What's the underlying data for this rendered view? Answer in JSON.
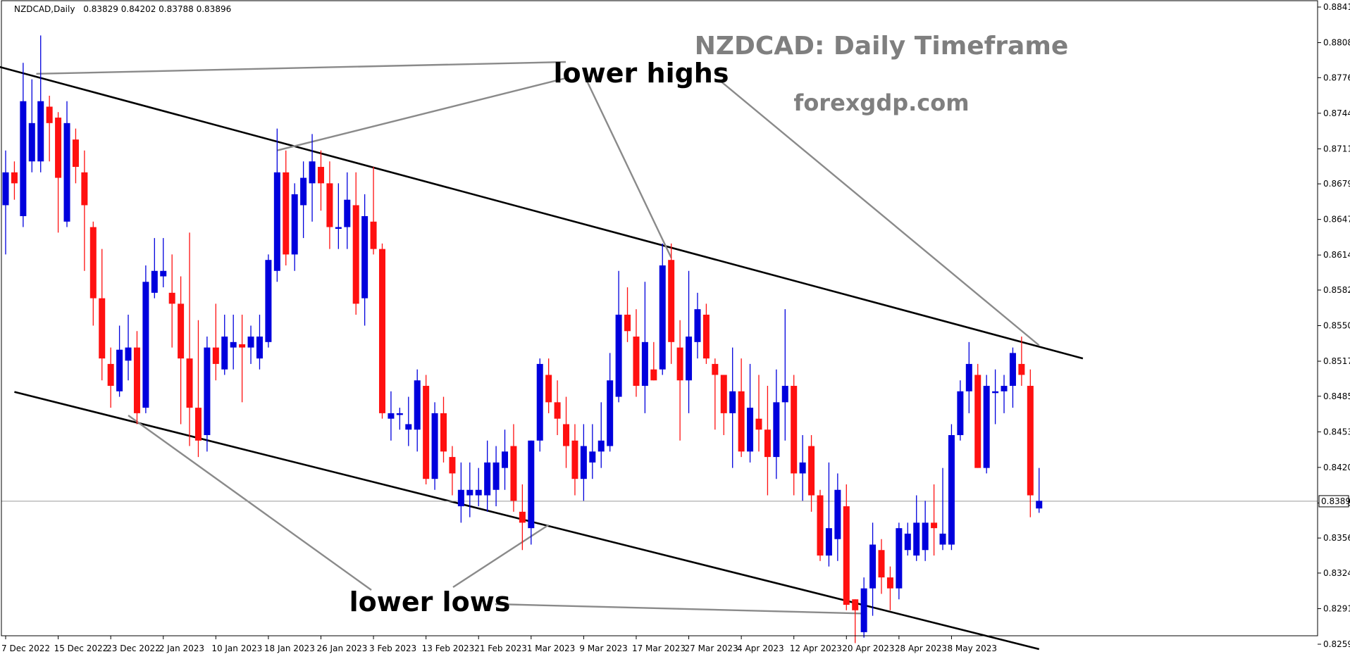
{
  "chart_data": {
    "type": "candlestick",
    "symbol_header": "NZDCAD,Daily",
    "header_ohlc": "0.83829 0.84202 0.83788 0.83896",
    "title": "NZDCAD: Daily Timeframe",
    "website": "forexgdp.com",
    "current_price": "0.83896",
    "ylim": [
      0.8243,
      0.8853
    ],
    "price_ticks": [
      "0.88410",
      "0.88085",
      "0.87765",
      "0.87440",
      "0.87115",
      "0.86795",
      "0.86470",
      "0.86145",
      "0.85825",
      "0.85500",
      "0.85175",
      "0.84855",
      "0.84530",
      "0.84205",
      "0.83880",
      "0.83560",
      "0.83240",
      "0.82915",
      "0.82590"
    ],
    "date_ticks": [
      {
        "i": 0,
        "label": "7 Dec 2022"
      },
      {
        "i": 6,
        "label": "15 Dec 2022"
      },
      {
        "i": 12,
        "label": "23 Dec 2022"
      },
      {
        "i": 18,
        "label": "2 Jan 2023"
      },
      {
        "i": 24,
        "label": "10 Jan 2023"
      },
      {
        "i": 30,
        "label": "18 Jan 2023"
      },
      {
        "i": 36,
        "label": "26 Jan 2023"
      },
      {
        "i": 42,
        "label": "3 Feb 2023"
      },
      {
        "i": 48,
        "label": "13 Feb 2023"
      },
      {
        "i": 54,
        "label": "21 Feb 2023"
      },
      {
        "i": 60,
        "label": "1 Mar 2023"
      },
      {
        "i": 66,
        "label": "9 Mar 2023"
      },
      {
        "i": 72,
        "label": "17 Mar 2023"
      },
      {
        "i": 78,
        "label": "27 Mar 2023"
      },
      {
        "i": 84,
        "label": "4 Apr 2023"
      },
      {
        "i": 90,
        "label": "12 Apr 2023"
      },
      {
        "i": 96,
        "label": "20 Apr 2023"
      },
      {
        "i": 102,
        "label": "28 Apr 2023"
      },
      {
        "i": 108,
        "label": "8 May 2023"
      }
    ],
    "candles": [
      [
        0.866,
        0.871,
        0.8615,
        0.869
      ],
      [
        0.869,
        0.87,
        0.8665,
        0.868
      ],
      [
        0.865,
        0.879,
        0.864,
        0.8755
      ],
      [
        0.87,
        0.8775,
        0.869,
        0.8735
      ],
      [
        0.87,
        0.8815,
        0.869,
        0.8755
      ],
      [
        0.875,
        0.876,
        0.87,
        0.8735
      ],
      [
        0.874,
        0.8745,
        0.8635,
        0.8685
      ],
      [
        0.8645,
        0.8755,
        0.864,
        0.8735
      ],
      [
        0.872,
        0.873,
        0.868,
        0.8695
      ],
      [
        0.869,
        0.871,
        0.86,
        0.866
      ],
      [
        0.864,
        0.8645,
        0.855,
        0.8575
      ],
      [
        0.8575,
        0.862,
        0.85,
        0.852
      ],
      [
        0.8515,
        0.853,
        0.8475,
        0.8495
      ],
      [
        0.849,
        0.855,
        0.8485,
        0.8528
      ],
      [
        0.8518,
        0.856,
        0.85,
        0.853
      ],
      [
        0.853,
        0.8545,
        0.846,
        0.847
      ],
      [
        0.8475,
        0.8605,
        0.847,
        0.859
      ],
      [
        0.858,
        0.863,
        0.8575,
        0.86
      ],
      [
        0.8595,
        0.863,
        0.8585,
        0.86
      ],
      [
        0.858,
        0.8615,
        0.853,
        0.857
      ],
      [
        0.857,
        0.8595,
        0.846,
        0.852
      ],
      [
        0.852,
        0.8635,
        0.844,
        0.8475
      ],
      [
        0.8475,
        0.8555,
        0.843,
        0.8445
      ],
      [
        0.845,
        0.854,
        0.8435,
        0.853
      ],
      [
        0.853,
        0.857,
        0.85,
        0.8515
      ],
      [
        0.851,
        0.856,
        0.8505,
        0.854
      ],
      [
        0.853,
        0.856,
        0.851,
        0.8535
      ],
      [
        0.8533,
        0.856,
        0.848,
        0.853
      ],
      [
        0.853,
        0.855,
        0.8515,
        0.854
      ],
      [
        0.852,
        0.856,
        0.851,
        0.854
      ],
      [
        0.8535,
        0.8615,
        0.853,
        0.861
      ],
      [
        0.86,
        0.873,
        0.859,
        0.869
      ],
      [
        0.869,
        0.871,
        0.8605,
        0.8615
      ],
      [
        0.8615,
        0.868,
        0.86,
        0.867
      ],
      [
        0.866,
        0.87,
        0.863,
        0.8685
      ],
      [
        0.868,
        0.8725,
        0.8645,
        0.87
      ],
      [
        0.8695,
        0.871,
        0.8655,
        0.868
      ],
      [
        0.868,
        0.87,
        0.862,
        0.864
      ],
      [
        0.864,
        0.868,
        0.862,
        0.864
      ],
      [
        0.864,
        0.869,
        0.862,
        0.8665
      ],
      [
        0.866,
        0.869,
        0.856,
        0.857
      ],
      [
        0.8575,
        0.867,
        0.855,
        0.865
      ],
      [
        0.8645,
        0.8695,
        0.8615,
        0.862
      ],
      [
        0.862,
        0.8625,
        0.8465,
        0.847
      ],
      [
        0.8465,
        0.849,
        0.8445,
        0.847
      ],
      [
        0.847,
        0.8475,
        0.8455,
        0.847
      ],
      [
        0.8455,
        0.8485,
        0.844,
        0.846
      ],
      [
        0.8455,
        0.851,
        0.8435,
        0.85
      ],
      [
        0.8495,
        0.8505,
        0.8405,
        0.841
      ],
      [
        0.841,
        0.848,
        0.84,
        0.847
      ],
      [
        0.847,
        0.8485,
        0.8425,
        0.8435
      ],
      [
        0.843,
        0.844,
        0.8395,
        0.8415
      ],
      [
        0.8385,
        0.8425,
        0.837,
        0.84
      ],
      [
        0.8395,
        0.8425,
        0.8375,
        0.84
      ],
      [
        0.8395,
        0.842,
        0.8385,
        0.84
      ],
      [
        0.8395,
        0.8445,
        0.838,
        0.8425
      ],
      [
        0.84,
        0.844,
        0.8385,
        0.8425
      ],
      [
        0.842,
        0.8455,
        0.84,
        0.8435
      ],
      [
        0.844,
        0.846,
        0.838,
        0.839
      ],
      [
        0.838,
        0.8405,
        0.8345,
        0.837
      ],
      [
        0.8365,
        0.8445,
        0.835,
        0.8445
      ],
      [
        0.8445,
        0.852,
        0.8435,
        0.8515
      ],
      [
        0.8505,
        0.852,
        0.847,
        0.848
      ],
      [
        0.848,
        0.85,
        0.845,
        0.8465
      ],
      [
        0.846,
        0.8485,
        0.842,
        0.844
      ],
      [
        0.8445,
        0.846,
        0.8395,
        0.841
      ],
      [
        0.841,
        0.846,
        0.839,
        0.844
      ],
      [
        0.8425,
        0.846,
        0.841,
        0.8435
      ],
      [
        0.8435,
        0.848,
        0.842,
        0.8445
      ],
      [
        0.844,
        0.8525,
        0.8435,
        0.85
      ],
      [
        0.8485,
        0.86,
        0.848,
        0.856
      ],
      [
        0.856,
        0.8585,
        0.8535,
        0.8545
      ],
      [
        0.854,
        0.8565,
        0.8485,
        0.8495
      ],
      [
        0.8495,
        0.859,
        0.847,
        0.8535
      ],
      [
        0.851,
        0.8535,
        0.85,
        0.85
      ],
      [
        0.851,
        0.8625,
        0.8505,
        0.8605
      ],
      [
        0.861,
        0.8625,
        0.8515,
        0.8535
      ],
      [
        0.853,
        0.8555,
        0.8445,
        0.85
      ],
      [
        0.85,
        0.86,
        0.847,
        0.854
      ],
      [
        0.8535,
        0.858,
        0.852,
        0.8565
      ],
      [
        0.856,
        0.857,
        0.8515,
        0.852
      ],
      [
        0.8515,
        0.852,
        0.8455,
        0.8505
      ],
      [
        0.8505,
        0.8505,
        0.845,
        0.847
      ],
      [
        0.847,
        0.853,
        0.842,
        0.849
      ],
      [
        0.849,
        0.852,
        0.843,
        0.8435
      ],
      [
        0.8435,
        0.8515,
        0.8425,
        0.8475
      ],
      [
        0.8465,
        0.8505,
        0.8435,
        0.8455
      ],
      [
        0.8455,
        0.8495,
        0.8395,
        0.843
      ],
      [
        0.843,
        0.851,
        0.841,
        0.848
      ],
      [
        0.848,
        0.8565,
        0.8445,
        0.8495
      ],
      [
        0.8495,
        0.8505,
        0.8395,
        0.8415
      ],
      [
        0.8415,
        0.845,
        0.839,
        0.8425
      ],
      [
        0.844,
        0.845,
        0.838,
        0.8395
      ],
      [
        0.8395,
        0.84,
        0.8335,
        0.834
      ],
      [
        0.834,
        0.8425,
        0.833,
        0.8365
      ],
      [
        0.8355,
        0.8415,
        0.8335,
        0.84
      ],
      [
        0.8385,
        0.8405,
        0.829,
        0.8295
      ],
      [
        0.83,
        0.83,
        0.826,
        0.829
      ],
      [
        0.827,
        0.832,
        0.8265,
        0.831
      ],
      [
        0.831,
        0.837,
        0.8285,
        0.835
      ],
      [
        0.8345,
        0.8355,
        0.8305,
        0.832
      ],
      [
        0.832,
        0.833,
        0.829,
        0.831
      ],
      [
        0.831,
        0.837,
        0.83,
        0.8365
      ],
      [
        0.8345,
        0.837,
        0.834,
        0.836
      ],
      [
        0.834,
        0.8395,
        0.8335,
        0.837
      ],
      [
        0.8345,
        0.839,
        0.8335,
        0.837
      ],
      [
        0.837,
        0.8405,
        0.834,
        0.8365
      ],
      [
        0.835,
        0.842,
        0.8345,
        0.836
      ],
      [
        0.835,
        0.846,
        0.8345,
        0.845
      ],
      [
        0.845,
        0.85,
        0.8445,
        0.849
      ],
      [
        0.849,
        0.8535,
        0.847,
        0.8515
      ],
      [
        0.8505,
        0.8515,
        0.842,
        0.842
      ],
      [
        0.842,
        0.8505,
        0.8415,
        0.8495
      ],
      [
        0.849,
        0.851,
        0.846,
        0.849
      ],
      [
        0.849,
        0.8505,
        0.847,
        0.8495
      ],
      [
        0.8495,
        0.853,
        0.8475,
        0.8525
      ],
      [
        0.8515,
        0.854,
        0.8495,
        0.8505
      ],
      [
        0.8495,
        0.851,
        0.8375,
        0.8395
      ],
      [
        0.8383,
        0.842,
        0.8379,
        0.839
      ]
    ],
    "trendlines": [
      {
        "from": [
          -1,
          0.8787
        ],
        "to": [
          123,
          0.852
        ],
        "role": "upper channel"
      },
      {
        "from": [
          1,
          0.84895
        ],
        "to": [
          118,
          0.82545
        ],
        "role": "lower channel"
      }
    ],
    "annotations": [
      {
        "text": "lower highs",
        "pointers": [
          [
            3.5,
            0.878
          ],
          [
            31,
            0.871
          ],
          [
            76,
            0.8612
          ],
          [
            118,
            0.8532
          ]
        ]
      },
      {
        "text": "lower lows",
        "pointers": [
          [
            14,
            0.8468
          ],
          [
            62,
            0.8368
          ],
          [
            98,
            0.8287
          ]
        ]
      }
    ],
    "grid": false,
    "legend": "none"
  },
  "colors": {
    "bull": "#0000dd",
    "bear": "#ff1010",
    "trendline": "#000000",
    "pointer": "#8a8a8a",
    "title": "#7f7f7f",
    "price_line": "#9a9a9a"
  }
}
